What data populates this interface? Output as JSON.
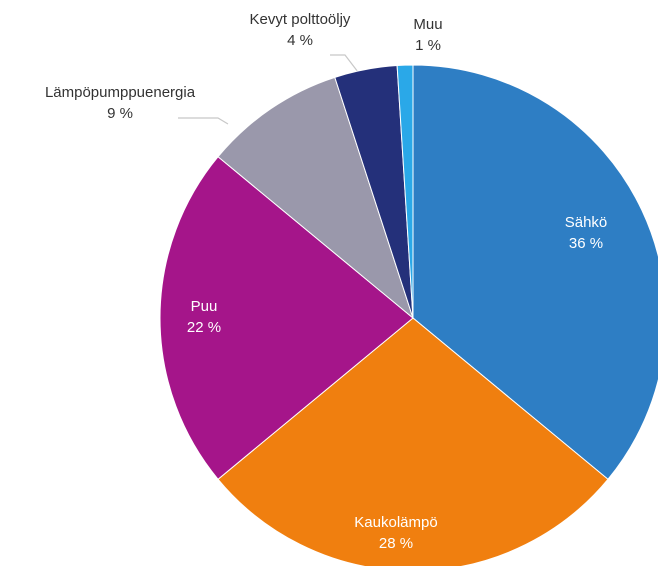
{
  "chart_data": {
    "type": "pie",
    "categories": [
      "Sähkö",
      "Kaukolämpö",
      "Puu",
      "Lämpöpumppuenergia",
      "Kevyt polttoöljy",
      "Muu"
    ],
    "values": [
      36,
      28,
      22,
      9,
      4,
      1
    ],
    "value_labels": [
      "36 %",
      "28 %",
      "22 %",
      "9 %",
      "4 %",
      "1 %"
    ],
    "colors": [
      "#2e7ec4",
      "#f07f0f",
      "#a5158a",
      "#9a98ab",
      "#24307a",
      "#2aa8e8"
    ]
  }
}
